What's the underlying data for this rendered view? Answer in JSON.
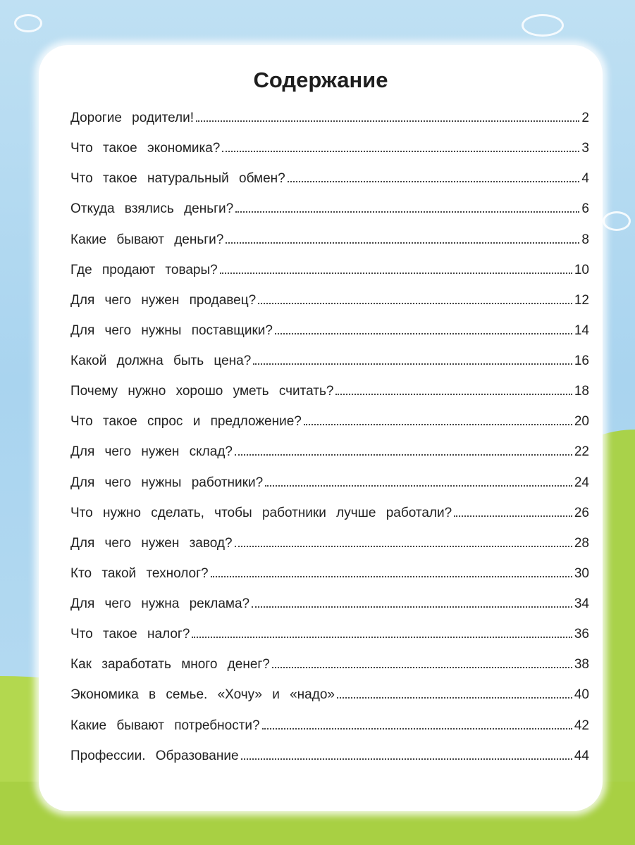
{
  "title": "Содержание",
  "entries": [
    {
      "title": "Дорогие родители!",
      "page": "2"
    },
    {
      "title": "Что такое экономика?",
      "page": "3"
    },
    {
      "title": "Что такое натуральный обмен?",
      "page": "4"
    },
    {
      "title": "Откуда взялись деньги?",
      "page": "6"
    },
    {
      "title": "Какие бывают деньги?",
      "page": "8"
    },
    {
      "title": "Где продают товары?",
      "page": "10"
    },
    {
      "title": "Для чего нужен продавец?",
      "page": "12"
    },
    {
      "title": "Для чего нужны поставщики?",
      "page": "14"
    },
    {
      "title": "Какой должна быть цена?",
      "page": "16"
    },
    {
      "title": "Почему нужно хорошо уметь считать?",
      "page": "18"
    },
    {
      "title": "Что такое спрос и предложение?",
      "page": "20"
    },
    {
      "title": "Для чего нужен склад?",
      "page": "22"
    },
    {
      "title": "Для чего нужны работники?",
      "page": "24"
    },
    {
      "title": "Что нужно сделать, чтобы работники лучше работали?",
      "page": "26"
    },
    {
      "title": "Для чего нужен завод?",
      "page": "28"
    },
    {
      "title": "Кто такой технолог?",
      "page": "30"
    },
    {
      "title": "Для чего нужна реклама?",
      "page": "34"
    },
    {
      "title": "Что такое налог?",
      "page": "36"
    },
    {
      "title": "Как заработать много денег?",
      "page": "38"
    },
    {
      "title": "Экономика в семье. «Хочу» и «надо»",
      "page": "40"
    },
    {
      "title": "Какие бывают потребности?",
      "page": "42"
    },
    {
      "title": "Профессии. Образование",
      "page": "44"
    }
  ]
}
